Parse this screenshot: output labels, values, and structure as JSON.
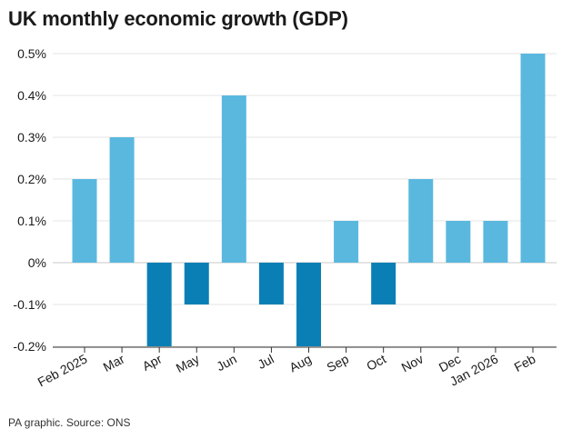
{
  "title": "UK monthly economic growth (GDP)",
  "footer": "PA graphic. Source: ONS",
  "colors": {
    "positive": "#5ab8df",
    "negative": "#0a7fb5",
    "grid": "#e6e6e6",
    "axis": "#333333",
    "text": "#1a1a1a"
  },
  "chart_data": {
    "type": "bar",
    "title": "UK monthly economic growth (GDP)",
    "categories": [
      "Feb 2025",
      "Mar",
      "Apr",
      "May",
      "Jun",
      "Jul",
      "Aug",
      "Sep",
      "Oct",
      "Nov",
      "Dec",
      "Jan 2026",
      "Feb"
    ],
    "values": [
      0.2,
      0.3,
      -0.2,
      -0.1,
      0.4,
      -0.1,
      -0.2,
      0.1,
      -0.1,
      0.2,
      0.1,
      0.1,
      0.5
    ],
    "yticks": [
      "0.5%",
      "0.4%",
      "0.3%",
      "0.2%",
      "0.1%",
      "0%",
      "-0.1%",
      "-0.2%"
    ],
    "ytick_values": [
      0.5,
      0.4,
      0.3,
      0.2,
      0.1,
      0,
      -0.1,
      -0.2
    ],
    "ylim": [
      -0.2,
      0.5
    ],
    "grid": true,
    "xlabel": "",
    "ylabel": ""
  }
}
